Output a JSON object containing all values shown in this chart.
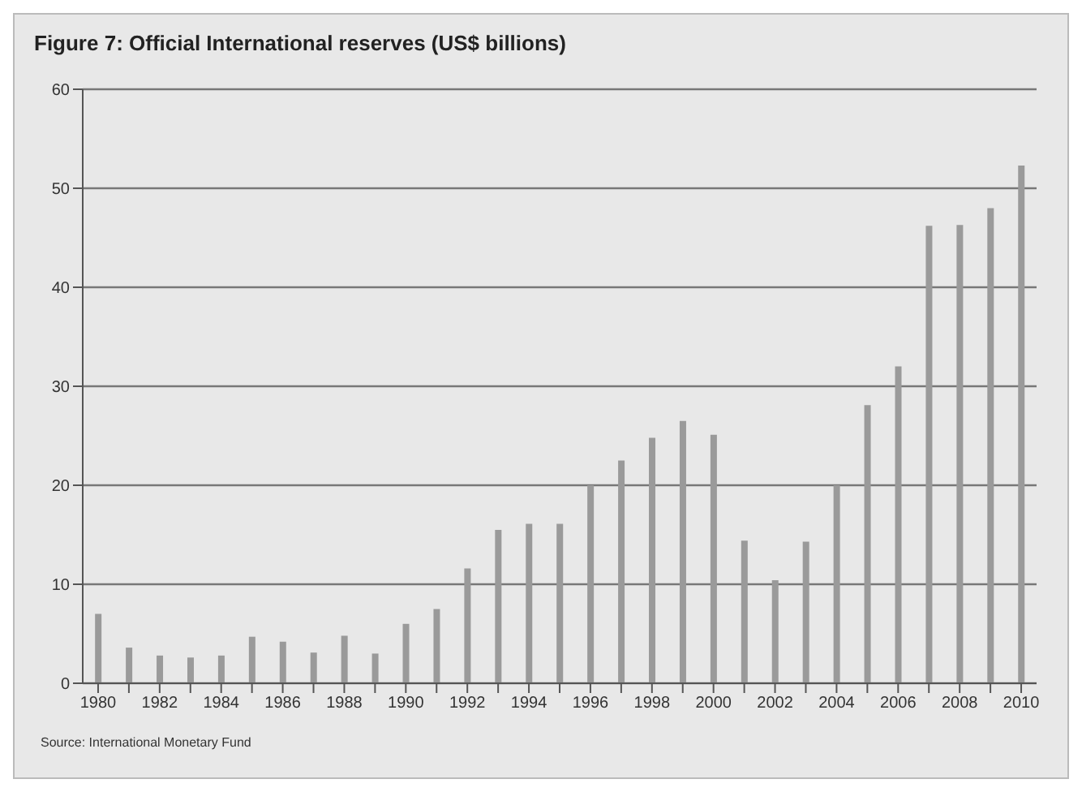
{
  "chart_data": {
    "type": "bar",
    "title": "Figure 7: Official International reserves (US$ billions)",
    "categories": [
      "1980",
      null,
      "1982",
      null,
      "1984",
      null,
      "1986",
      null,
      "1988",
      null,
      "1990",
      null,
      "1992",
      null,
      "1994",
      null,
      "1996",
      null,
      "1998",
      null,
      "2000",
      null,
      "2002",
      null,
      "2004",
      null,
      "2006",
      null,
      "2008",
      null,
      "2010"
    ],
    "values": [
      7,
      3.6,
      2.8,
      2.6,
      2.8,
      4.7,
      4.2,
      3.1,
      4.8,
      3,
      6,
      7.5,
      11.6,
      15.5,
      16.1,
      16.1,
      20,
      22.5,
      24.8,
      26.5,
      25.1,
      14.4,
      10.4,
      14.3,
      20,
      28.1,
      32,
      46.2,
      46.3,
      48,
      52.3
    ],
    "color": "#9a9a9a",
    "ylim": [
      0,
      60
    ],
    "yticks": [
      0,
      10,
      20,
      30,
      40,
      50,
      60
    ],
    "grid": "y",
    "annotations": [
      "Source: International Monetary Fund"
    ]
  }
}
